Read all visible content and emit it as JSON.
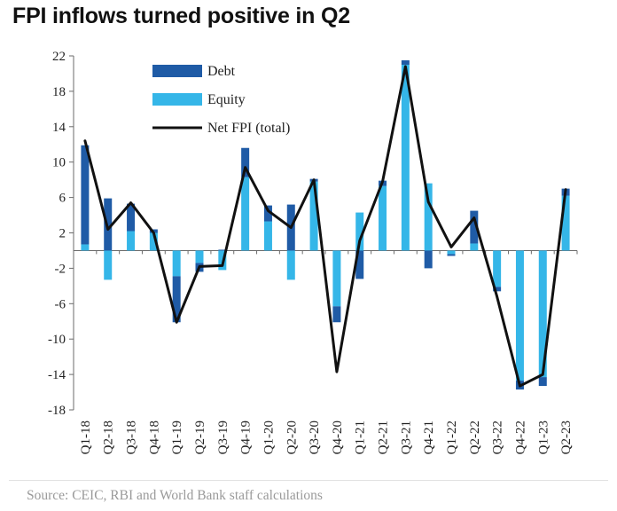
{
  "chart_data": {
    "type": "bar",
    "title": "FPI inflows turned positive in Q2",
    "source": "Source: CEIC, RBI and World Bank staff calculations",
    "categories": [
      "Q1-18",
      "Q2-18",
      "Q3-18",
      "Q4-18",
      "Q1-19",
      "Q2-19",
      "Q3-19",
      "Q4-19",
      "Q1-20",
      "Q2-20",
      "Q3-20",
      "Q4-20",
      "Q1-21",
      "Q2-21",
      "Q3-21",
      "Q4-21",
      "Q1-22",
      "Q2-22",
      "Q3-22",
      "Q4-22",
      "Q1-23",
      "Q2-23"
    ],
    "ylim": [
      -18,
      22
    ],
    "yticks": [
      22,
      18,
      14,
      10,
      6,
      2,
      -2,
      -6,
      -10,
      -14,
      -18
    ],
    "series": [
      {
        "name": "Debt",
        "kind": "bar",
        "color": "#1f5ba6",
        "values": [
          11.2,
          5.9,
          3.1,
          0.4,
          -5.2,
          -1.0,
          0.1,
          3.3,
          1.8,
          5.2,
          0.3,
          -1.8,
          -3.2,
          0.6,
          0.5,
          -2.0,
          -0.2,
          3.7,
          -0.5,
          -1.0,
          -1.0,
          0.8
        ]
      },
      {
        "name": "Equity",
        "kind": "bar",
        "color": "#35b6e8",
        "values": [
          0.7,
          -3.3,
          2.2,
          2.0,
          -2.9,
          -1.4,
          -2.2,
          8.3,
          3.3,
          -3.3,
          7.8,
          -6.3,
          4.3,
          7.3,
          21.0,
          7.6,
          -0.4,
          0.8,
          -4.1,
          -14.7,
          -14.3,
          6.2
        ]
      },
      {
        "name": "Net FPI (total)",
        "kind": "line",
        "color": "#111111",
        "values": [
          12.4,
          2.4,
          5.4,
          2.0,
          -8.1,
          -1.8,
          -1.7,
          9.4,
          4.5,
          2.6,
          8.0,
          -13.7,
          1.1,
          7.8,
          20.8,
          5.5,
          0.4,
          3.7,
          -5.2,
          -15.3,
          -14.0,
          6.9
        ]
      }
    ]
  }
}
